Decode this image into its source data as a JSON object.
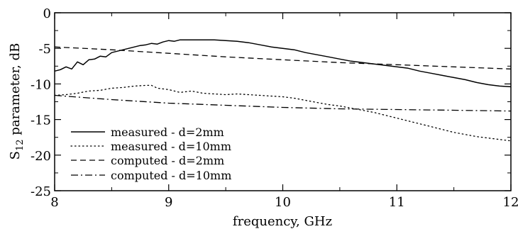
{
  "chart_data": {
    "type": "line",
    "xlabel": "frequency, GHz",
    "ylabel_main": "S",
    "ylabel_sub": "12",
    "ylabel_rest": " parameter, dB",
    "xlim": [
      8,
      12
    ],
    "ylim": [
      -25,
      0
    ],
    "x_ticks": [
      8,
      9,
      10,
      11,
      12
    ],
    "y_ticks": [
      0,
      -5,
      -10,
      -15,
      -20,
      -25
    ],
    "x_tick_labels": [
      "8",
      "9",
      "10",
      "11",
      "12"
    ],
    "y_tick_labels": [
      "0",
      "-5",
      "-10",
      "-15",
      "-20",
      "-25"
    ],
    "grid": false,
    "legend_position": "bottom-left",
    "series": [
      {
        "name": "measured - d=2mm",
        "dash": "solid",
        "x": [
          8.0,
          8.05,
          8.1,
          8.15,
          8.2,
          8.25,
          8.3,
          8.35,
          8.4,
          8.45,
          8.5,
          8.55,
          8.6,
          8.65,
          8.7,
          8.75,
          8.8,
          8.85,
          8.9,
          8.95,
          9.0,
          9.05,
          9.1,
          9.2,
          9.3,
          9.4,
          9.5,
          9.6,
          9.7,
          9.8,
          9.9,
          10.0,
          10.1,
          10.2,
          10.3,
          10.4,
          10.5,
          10.6,
          10.7,
          10.8,
          10.9,
          11.0,
          11.1,
          11.2,
          11.3,
          11.4,
          11.5,
          11.6,
          11.7,
          11.8,
          11.9,
          12.0
        ],
        "y": [
          -8.2,
          -8.0,
          -7.6,
          -7.9,
          -6.9,
          -7.3,
          -6.6,
          -6.5,
          -6.1,
          -6.2,
          -5.6,
          -5.4,
          -5.2,
          -5.0,
          -4.8,
          -4.6,
          -4.5,
          -4.3,
          -4.4,
          -4.1,
          -3.9,
          -4.0,
          -3.8,
          -3.8,
          -3.8,
          -3.8,
          -3.9,
          -4.0,
          -4.2,
          -4.5,
          -4.8,
          -5.0,
          -5.2,
          -5.6,
          -5.9,
          -6.2,
          -6.5,
          -6.8,
          -7.0,
          -7.2,
          -7.4,
          -7.6,
          -7.8,
          -8.2,
          -8.5,
          -8.8,
          -9.1,
          -9.4,
          -9.8,
          -10.1,
          -10.3,
          -10.4
        ]
      },
      {
        "name": "measured - d=10mm",
        "dash": "dotted",
        "x": [
          8.0,
          8.1,
          8.2,
          8.3,
          8.4,
          8.5,
          8.6,
          8.7,
          8.8,
          8.85,
          8.9,
          9.0,
          9.1,
          9.2,
          9.3,
          9.4,
          9.5,
          9.6,
          9.7,
          9.8,
          9.9,
          10.0,
          10.1,
          10.2,
          10.3,
          10.4,
          10.5,
          10.6,
          10.7,
          10.8,
          10.9,
          11.0,
          11.1,
          11.2,
          11.3,
          11.4,
          11.5,
          11.6,
          11.7,
          11.8,
          11.9,
          12.0
        ],
        "y": [
          -11.6,
          -11.5,
          -11.3,
          -11.0,
          -10.9,
          -10.6,
          -10.5,
          -10.3,
          -10.2,
          -10.2,
          -10.6,
          -10.8,
          -11.2,
          -11.0,
          -11.3,
          -11.4,
          -11.5,
          -11.4,
          -11.5,
          -11.6,
          -11.7,
          -11.8,
          -12.0,
          -12.3,
          -12.6,
          -12.9,
          -13.1,
          -13.4,
          -13.7,
          -14.0,
          -14.4,
          -14.8,
          -15.2,
          -15.6,
          -16.0,
          -16.4,
          -16.8,
          -17.1,
          -17.4,
          -17.6,
          -17.8,
          -18.0
        ]
      },
      {
        "name": "computed - d=2mm",
        "dash": "dashed",
        "x": [
          8.0,
          8.5,
          9.0,
          9.5,
          10.0,
          10.5,
          11.0,
          11.5,
          12.0
        ],
        "y": [
          -4.8,
          -5.2,
          -5.7,
          -6.2,
          -6.6,
          -7.0,
          -7.3,
          -7.6,
          -7.9
        ]
      },
      {
        "name": "computed - d=10mm",
        "dash": "dashdot",
        "x": [
          8.0,
          8.5,
          9.0,
          9.5,
          10.0,
          10.5,
          11.0,
          11.5,
          12.0
        ],
        "y": [
          -11.6,
          -12.2,
          -12.7,
          -13.0,
          -13.3,
          -13.5,
          -13.6,
          -13.7,
          -13.8
        ]
      }
    ]
  }
}
